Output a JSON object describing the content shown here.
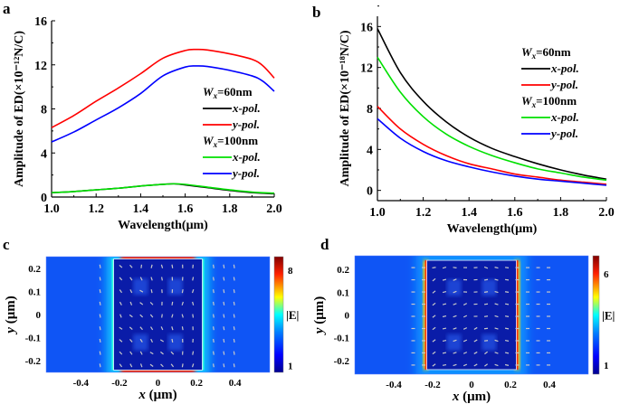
{
  "chart_data": [
    {
      "panel": "a",
      "type": "line",
      "xlabel": "Wavelength(μm)",
      "ylabel": "Amplitude of ED(×10⁻¹²N/C)",
      "xlim": [
        1.0,
        2.0
      ],
      "ylim": [
        0,
        16
      ],
      "xticks": [
        "1.0",
        "1.2",
        "1.4",
        "1.6",
        "1.8",
        "2.0"
      ],
      "yticks": [
        "0",
        "4",
        "8",
        "12",
        "16"
      ],
      "legend": {
        "placement": "center-right",
        "group1": "Wx=60nm",
        "group2": "Wx=100nm"
      },
      "series": [
        {
          "name": "x-pol.",
          "group": "Wx=60nm",
          "color": "#000000",
          "x": [
            1.0,
            1.1,
            1.2,
            1.3,
            1.4,
            1.5,
            1.55,
            1.6,
            1.7,
            1.8,
            1.9,
            2.0
          ],
          "y": [
            0.4,
            0.5,
            0.65,
            0.8,
            1.0,
            1.15,
            1.2,
            1.1,
            0.85,
            0.6,
            0.4,
            0.3
          ]
        },
        {
          "name": "y-pol.",
          "group": "Wx=60nm",
          "color": "#ff0000",
          "x": [
            1.0,
            1.1,
            1.2,
            1.3,
            1.4,
            1.5,
            1.6,
            1.65,
            1.7,
            1.8,
            1.9,
            1.95,
            2.0
          ],
          "y": [
            6.3,
            7.4,
            8.7,
            9.9,
            11.2,
            12.6,
            13.3,
            13.4,
            13.35,
            13.0,
            12.5,
            11.9,
            10.8
          ]
        },
        {
          "name": "x-pol.",
          "group": "Wx=100nm",
          "color": "#00e000",
          "x": [
            1.0,
            1.1,
            1.2,
            1.3,
            1.4,
            1.5,
            1.55,
            1.6,
            1.7,
            1.8,
            1.9,
            2.0
          ],
          "y": [
            0.4,
            0.5,
            0.65,
            0.8,
            1.0,
            1.15,
            1.2,
            1.15,
            0.9,
            0.65,
            0.45,
            0.35
          ]
        },
        {
          "name": "y-pol.",
          "group": "Wx=100nm",
          "color": "#0000ff",
          "x": [
            1.0,
            1.1,
            1.2,
            1.3,
            1.4,
            1.5,
            1.6,
            1.65,
            1.7,
            1.8,
            1.9,
            1.95,
            2.0
          ],
          "y": [
            5.0,
            5.9,
            7.0,
            8.1,
            9.4,
            11.0,
            11.8,
            11.9,
            11.85,
            11.5,
            11.0,
            10.5,
            9.6
          ]
        }
      ]
    },
    {
      "panel": "b",
      "type": "line",
      "xlabel": "Wavelength(μm)",
      "ylabel": "Amplitude of ED(×10⁻¹⁸N/C)",
      "xlim": [
        1.0,
        2.0
      ],
      "ylim": [
        -1,
        17
      ],
      "xticks": [
        "1.0",
        "1.2",
        "1.4",
        "1.6",
        "1.8",
        "2.0"
      ],
      "yticks": [
        "0",
        "4",
        "8",
        "12",
        "16"
      ],
      "legend": {
        "placement": "top-right",
        "group1": "Wx=60nm",
        "group2": "Wx=100nm"
      },
      "series": [
        {
          "name": "x-pol.",
          "group": "Wx=60nm",
          "color": "#000000",
          "x": [
            1.0,
            1.1,
            1.2,
            1.3,
            1.4,
            1.5,
            1.6,
            1.7,
            1.8,
            1.9,
            2.0
          ],
          "y": [
            15.8,
            11.5,
            8.7,
            6.7,
            5.2,
            4.1,
            3.3,
            2.6,
            2.0,
            1.5,
            1.1
          ]
        },
        {
          "name": "y-pol.",
          "group": "Wx=60nm",
          "color": "#ff0000",
          "x": [
            1.0,
            1.1,
            1.2,
            1.3,
            1.4,
            1.5,
            1.6,
            1.7,
            1.8,
            1.9,
            2.0
          ],
          "y": [
            8.2,
            6.0,
            4.5,
            3.4,
            2.6,
            2.1,
            1.6,
            1.3,
            1.0,
            0.8,
            0.6
          ]
        },
        {
          "name": "x-pol.",
          "group": "Wx=100nm",
          "color": "#00e000",
          "x": [
            1.0,
            1.1,
            1.2,
            1.3,
            1.4,
            1.5,
            1.6,
            1.7,
            1.8,
            1.9,
            2.0
          ],
          "y": [
            13.0,
            9.6,
            7.2,
            5.5,
            4.3,
            3.4,
            2.7,
            2.1,
            1.7,
            1.3,
            1.0
          ]
        },
        {
          "name": "y-pol.",
          "group": "Wx=100nm",
          "color": "#0000ff",
          "x": [
            1.0,
            1.1,
            1.2,
            1.3,
            1.4,
            1.5,
            1.6,
            1.7,
            1.8,
            1.9,
            2.0
          ],
          "y": [
            7.0,
            5.1,
            3.8,
            2.9,
            2.3,
            1.8,
            1.4,
            1.1,
            0.9,
            0.7,
            0.5
          ]
        }
      ]
    },
    {
      "panel": "c",
      "type": "heatmap",
      "xlabel": "x (μm)",
      "ylabel": "y (μm)",
      "xlim": [
        -0.58,
        0.58
      ],
      "ylim": [
        -0.25,
        0.25
      ],
      "xticks": [
        "-0.4",
        "-0.2",
        "0",
        "0.2",
        "0.4"
      ],
      "yticks": [
        "0.2",
        "0.1",
        "0",
        "-0.1",
        "-0.2"
      ],
      "colorbar": {
        "label": "|E|",
        "ticks": [
          "8",
          "1"
        ],
        "range": [
          0.5,
          9
        ]
      },
      "hotspots": "top and bottom edges of the rectangle"
    },
    {
      "panel": "d",
      "type": "heatmap",
      "xlabel": "x (μm)",
      "ylabel": "y (μm)",
      "xlim": [
        -0.6,
        0.6
      ],
      "ylim": [
        -0.26,
        0.26
      ],
      "xticks": [
        "-0.4",
        "-0.2",
        "0",
        "0.2",
        "0.4"
      ],
      "yticks": [
        "0.2",
        "0.1",
        "0",
        "-0.1",
        "-0.2"
      ],
      "colorbar": {
        "label": "|E|",
        "ticks": [
          "6",
          "1"
        ],
        "range": [
          0.5,
          7
        ]
      },
      "hotspots": "left and right edges of the rectangle"
    }
  ]
}
